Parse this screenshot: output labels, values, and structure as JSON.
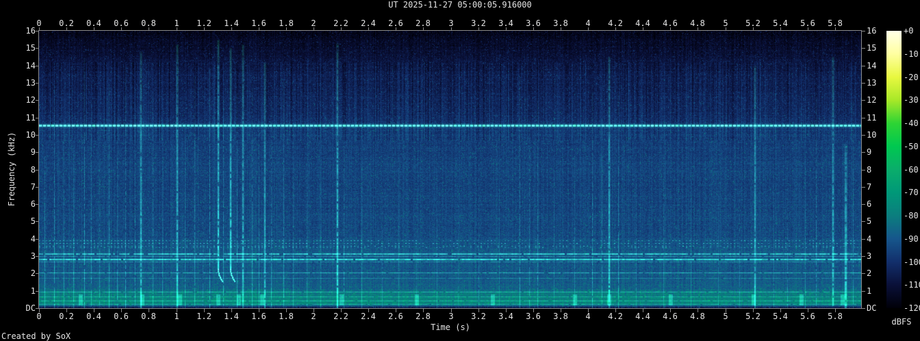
{
  "credit": "Created by SoX",
  "colors": {
    "background": "#000000",
    "label": "#e4e4e4",
    "frame": "#8a8a8a",
    "accent_green": "#3ce87c"
  },
  "chart_data": {
    "type": "heatmap",
    "variant": "audio-spectrogram",
    "title": "UT 2025-11-27 05:00:05.916000",
    "xlabel": "Time (s)",
    "ylabel": "Frequency (kHz)",
    "grid": false,
    "x_ticks": [
      "0",
      "0.2",
      "0.4",
      "0.6",
      "0.8",
      "1",
      "1.2",
      "1.4",
      "1.6",
      "1.8",
      "2",
      "2.2",
      "2.4",
      "2.6",
      "2.8",
      "3",
      "3.2",
      "3.4",
      "3.6",
      "3.8",
      "4",
      "4.2",
      "4.4",
      "4.6",
      "4.8",
      "5",
      "5.2",
      "5.4",
      "5.6",
      "5.8"
    ],
    "x_range_s": [
      0,
      5.99
    ],
    "y_ticks": [
      "16",
      "15",
      "14",
      "13",
      "12",
      "11",
      "10",
      "9",
      "8",
      "7",
      "6",
      "5",
      "4",
      "3",
      "2",
      "1",
      "DC"
    ],
    "y_range_khz": [
      0,
      16
    ],
    "colorbar": {
      "unit": "dBFS",
      "ticks": [
        "+0",
        "-10",
        "-20",
        "-30",
        "-40",
        "-50",
        "-60",
        "-70",
        "-80",
        "-90",
        "-100",
        "-110",
        "-120"
      ],
      "range_db": [
        -120,
        0
      ],
      "palette": [
        {
          "db": 0,
          "color": "#ffffe8"
        },
        {
          "db": -10,
          "color": "#ffffa0"
        },
        {
          "db": -20,
          "color": "#e8f840"
        },
        {
          "db": -30,
          "color": "#a8e828"
        },
        {
          "db": -40,
          "color": "#2ed434"
        },
        {
          "db": -50,
          "color": "#00c850"
        },
        {
          "db": -60,
          "color": "#0aad6b"
        },
        {
          "db": -70,
          "color": "#009878"
        },
        {
          "db": -80,
          "color": "#0b7e7e"
        },
        {
          "db": -90,
          "color": "#16568c"
        },
        {
          "db": -100,
          "color": "#122f6b"
        },
        {
          "db": -110,
          "color": "#0a1038"
        },
        {
          "db": -120,
          "color": "#000008"
        }
      ]
    },
    "background_profile_khz_db": [
      [
        0,
        -112
      ],
      [
        0.08,
        -104
      ],
      [
        0.18,
        -84
      ],
      [
        0.3,
        -79
      ],
      [
        0.55,
        -80
      ],
      [
        0.9,
        -82
      ],
      [
        1.15,
        -88
      ],
      [
        2.2,
        -90
      ],
      [
        3.3,
        -90.5
      ],
      [
        3.8,
        -91
      ],
      [
        4.2,
        -93
      ],
      [
        6,
        -94.5
      ],
      [
        8,
        -95
      ],
      [
        9,
        -96
      ],
      [
        10.3,
        -97
      ],
      [
        10.8,
        -100
      ],
      [
        11.2,
        -102
      ],
      [
        12.5,
        -104
      ],
      [
        13.5,
        -106
      ],
      [
        14.5,
        -110
      ],
      [
        15.2,
        -113
      ],
      [
        16,
        -117
      ]
    ],
    "horizontal_lines": [
      {
        "khz": 10.55,
        "style": "beaded",
        "strength": 0.9
      },
      {
        "khz": 3.9,
        "style": "dotted",
        "strength": 0.4
      },
      {
        "khz": 3.75,
        "style": "dotted",
        "strength": 0.45
      },
      {
        "khz": 3.6,
        "style": "dotted",
        "strength": 0.4
      },
      {
        "khz": 3.5,
        "style": "dotted",
        "strength": 0.35
      },
      {
        "khz": 3.17,
        "style": "solid",
        "strength": 0.65
      },
      {
        "khz": 3.02,
        "style": "solid",
        "strength": 0.4
      },
      {
        "khz": 2.86,
        "style": "solid",
        "strength": 0.8
      },
      {
        "khz": 2.7,
        "style": "solid",
        "strength": 0.35
      },
      {
        "khz": 2.05,
        "style": "solid",
        "strength": 0.5
      },
      {
        "khz": 1.75,
        "style": "solid",
        "strength": 0.25
      },
      {
        "khz": 0.95,
        "style": "solid",
        "strength": 0.4
      },
      {
        "khz": 0.68,
        "style": "solid",
        "strength": 0.3
      },
      {
        "khz": 0.45,
        "style": "solid",
        "strength": 0.35
      },
      {
        "khz": 0.25,
        "style": "solid",
        "strength": 0.35
      }
    ],
    "transients": [
      [
        0.04,
        9,
        0.5
      ],
      [
        0.11,
        13,
        0.5
      ],
      [
        0.18,
        11,
        0.35
      ],
      [
        0.25,
        9.5,
        0.45
      ],
      [
        0.33,
        14.5,
        0.55
      ],
      [
        0.38,
        12,
        0.4
      ],
      [
        0.44,
        10,
        0.35
      ],
      [
        0.51,
        13,
        0.5
      ],
      [
        0.57,
        11.5,
        0.4
      ],
      [
        0.63,
        14,
        0.5
      ],
      [
        0.7,
        12,
        0.35
      ],
      [
        0.74,
        14.8,
        0.65
      ],
      [
        0.83,
        12.5,
        0.4
      ],
      [
        0.9,
        10,
        0.3
      ],
      [
        1.0,
        15.2,
        0.7
      ],
      [
        1.06,
        11,
        0.35
      ],
      [
        1.13,
        13.5,
        0.45
      ],
      [
        1.19,
        10,
        0.3
      ],
      [
        1.24,
        14,
        0.5
      ],
      [
        1.3,
        15.5,
        0.8
      ],
      [
        1.34,
        12,
        0.5
      ],
      [
        1.39,
        15,
        0.75
      ],
      [
        1.44,
        12.5,
        0.45
      ],
      [
        1.48,
        15.2,
        0.6
      ],
      [
        1.55,
        13,
        0.5
      ],
      [
        1.6,
        11,
        0.4
      ],
      [
        1.64,
        14.2,
        0.6
      ],
      [
        1.69,
        12,
        0.45
      ],
      [
        1.78,
        13.2,
        0.5
      ],
      [
        1.85,
        10.5,
        0.35
      ],
      [
        1.95,
        9,
        0.3
      ],
      [
        2.05,
        8,
        0.25
      ],
      [
        2.17,
        15.3,
        0.75
      ],
      [
        2.22,
        12,
        0.4
      ],
      [
        2.35,
        8.5,
        0.35
      ],
      [
        2.5,
        7,
        0.25
      ],
      [
        2.62,
        9,
        0.25
      ],
      [
        2.75,
        7,
        0.2
      ],
      [
        2.9,
        8,
        0.25
      ],
      [
        3.05,
        7,
        0.2
      ],
      [
        3.2,
        8.5,
        0.25
      ],
      [
        3.35,
        7,
        0.2
      ],
      [
        3.5,
        13.5,
        0.45
      ],
      [
        3.57,
        11,
        0.35
      ],
      [
        3.63,
        12,
        0.4
      ],
      [
        3.75,
        8,
        0.25
      ],
      [
        3.9,
        9,
        0.3
      ],
      [
        4.03,
        13,
        0.5
      ],
      [
        4.1,
        11,
        0.4
      ],
      [
        4.15,
        14.5,
        0.65
      ],
      [
        4.22,
        12.5,
        0.45
      ],
      [
        4.35,
        8,
        0.25
      ],
      [
        4.55,
        9,
        0.3
      ],
      [
        4.75,
        7.5,
        0.2
      ],
      [
        4.95,
        8,
        0.25
      ],
      [
        5.1,
        9,
        0.3
      ],
      [
        5.21,
        14,
        0.6
      ],
      [
        5.35,
        8,
        0.25
      ],
      [
        5.45,
        10,
        0.35
      ],
      [
        5.58,
        9,
        0.3
      ],
      [
        5.66,
        12.5,
        0.45
      ],
      [
        5.78,
        14.5,
        0.6
      ],
      [
        5.87,
        9.5,
        0.6,
        3
      ],
      [
        5.93,
        12,
        0.4
      ]
    ],
    "whistler_hooks_s": [
      1.3,
      1.39
    ],
    "bottom_bursts_s": [
      0.3,
      0.75,
      1.02,
      1.3,
      1.45,
      1.62,
      2.2,
      2.75,
      3.3,
      3.9,
      4.15,
      4.6,
      5.2,
      5.55,
      5.85
    ],
    "noise_seed": 42
  }
}
